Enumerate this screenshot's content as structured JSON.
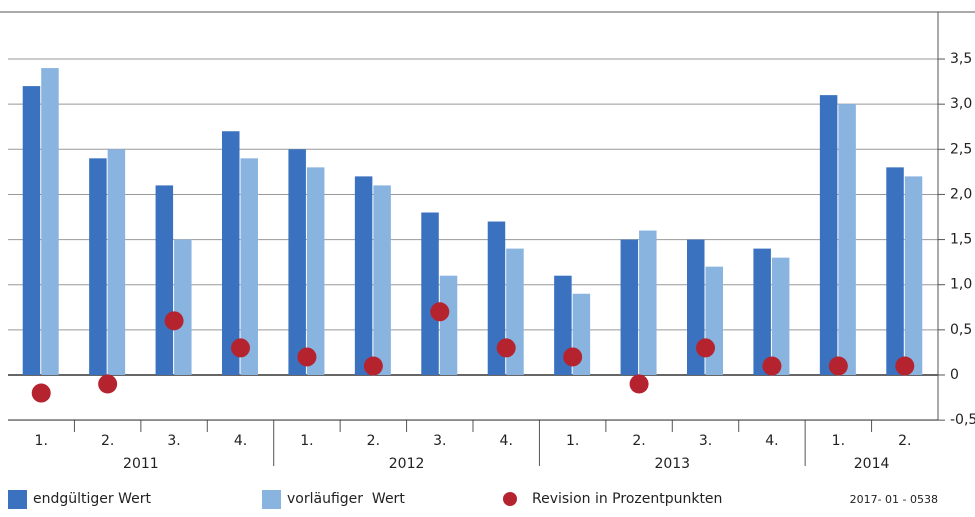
{
  "chart_data": {
    "type": "bar",
    "category_groups": [
      {
        "label": "2011",
        "categories": [
          "1.",
          "2.",
          "3.",
          "4."
        ]
      },
      {
        "label": "2012",
        "categories": [
          "1.",
          "2.",
          "3.",
          "4."
        ]
      },
      {
        "label": "2013",
        "categories": [
          "1.",
          "2.",
          "3.",
          "4."
        ]
      },
      {
        "label": "2014",
        "categories": [
          "1.",
          "2."
        ]
      }
    ],
    "series": [
      {
        "name": "endgültiger Wert",
        "type": "bar",
        "color": "#3a72bf",
        "values": [
          3.2,
          2.4,
          2.1,
          2.7,
          2.5,
          2.2,
          1.8,
          1.7,
          1.1,
          1.5,
          1.5,
          1.4,
          3.1,
          2.3
        ]
      },
      {
        "name": "vorläufiger  Wert",
        "type": "bar",
        "color": "#8ab4e0",
        "values": [
          3.4,
          2.5,
          1.5,
          2.4,
          2.3,
          2.1,
          1.1,
          1.4,
          0.9,
          1.6,
          1.2,
          1.3,
          3.0,
          2.2
        ]
      },
      {
        "name": "Revision in Prozentpunkten",
        "type": "scatter",
        "color": "#b5232f",
        "values": [
          -0.2,
          -0.1,
          0.6,
          0.3,
          0.2,
          0.1,
          0.7,
          0.3,
          0.2,
          -0.1,
          0.3,
          0.1,
          0.1,
          0.1
        ]
      }
    ],
    "ylim": [
      -0.5,
      4
    ],
    "yticks": [
      {
        "value": -0.5,
        "label": "-0,5"
      },
      0,
      {
        "value": 0.5,
        "label": "0,5"
      },
      {
        "value": 1,
        "label": "1,0"
      },
      {
        "value": 1.5,
        "label": "1,5"
      },
      {
        "value": 2,
        "label": "2,0"
      },
      {
        "value": 2.5,
        "label": "2,5"
      },
      {
        "value": 3,
        "label": "3,0"
      },
      {
        "value": 3.5,
        "label": "3,5"
      }
    ],
    "grid": true,
    "note": "2017- 01 - 0538"
  }
}
